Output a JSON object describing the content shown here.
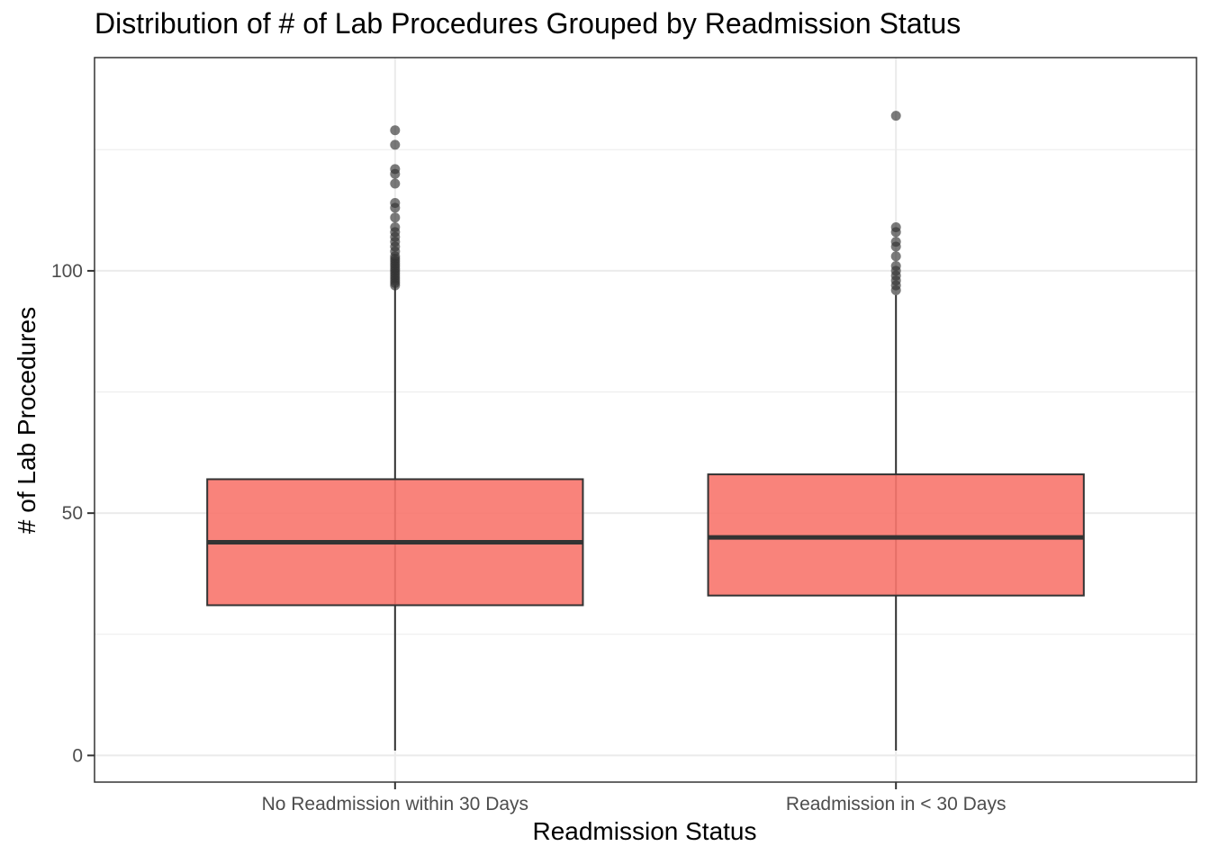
{
  "chart_data": {
    "type": "boxplot",
    "title": "Distribution of # of Lab Procedures Grouped by Readmission Status",
    "xlabel": "Readmission Status",
    "ylabel": "# of Lab Procedures",
    "ylim": [
      -5.5,
      144
    ],
    "yticks": [
      0,
      50,
      100
    ],
    "grid": true,
    "fill_color": "#F8766D",
    "categories": [
      "No Readmission within 30 Days",
      "Readmission in < 30 Days"
    ],
    "boxes": [
      {
        "category": "No Readmission within 30 Days",
        "min": 1,
        "q1": 31,
        "median": 44,
        "q3": 57,
        "whisker_high": 97,
        "outliers": [
          97,
          97.5,
          98,
          98.5,
          99,
          99.5,
          100,
          100.5,
          101,
          101.5,
          102,
          102.5,
          103,
          104,
          105,
          106,
          107,
          108,
          109,
          111,
          113,
          114,
          118,
          120,
          121,
          126,
          129
        ]
      },
      {
        "category": "Readmission in < 30 Days",
        "min": 1,
        "q1": 33,
        "median": 45,
        "q3": 58,
        "whisker_high": 95,
        "outliers": [
          96,
          97,
          98,
          99,
          100,
          101,
          103,
          105,
          106,
          108,
          109,
          132
        ]
      }
    ]
  }
}
